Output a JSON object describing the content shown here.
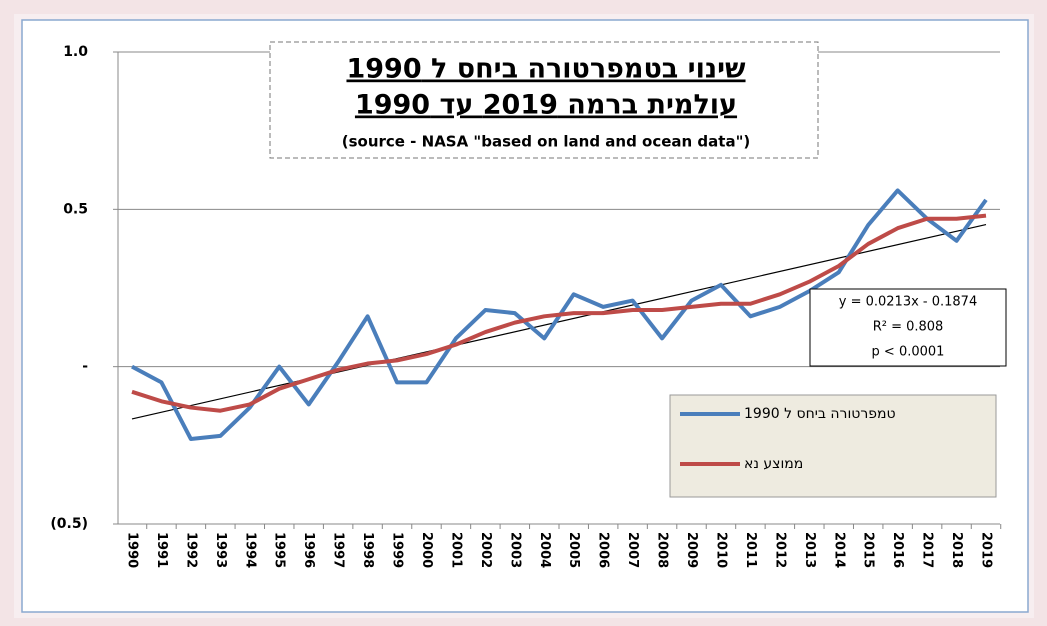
{
  "chart_data": {
    "type": "line",
    "title": [
      "שינוי בטמפרטורה ביחס ל 1990",
      "עולמית ברמה 2019 עד 1990"
    ],
    "subtitle": "(source - NASA \"based on land and ocean data\")",
    "categories": [
      "1990",
      "1991",
      "1992",
      "1993",
      "1994",
      "1995",
      "1996",
      "1997",
      "1998",
      "1999",
      "2000",
      "2001",
      "2002",
      "2003",
      "2004",
      "2005",
      "2006",
      "2007",
      "2008",
      "2009",
      "2010",
      "2011",
      "2012",
      "2013",
      "2014",
      "2015",
      "2016",
      "2017",
      "2018",
      "2019"
    ],
    "series": [
      {
        "name": "טמפרטורה ביחס ל 1990",
        "color": "#4a7ebb",
        "values": [
          0,
          -0.05,
          -0.23,
          -0.22,
          -0.13,
          0,
          -0.12,
          0.015,
          0.16,
          -0.05,
          -0.05,
          0.09,
          0.18,
          0.17,
          0.09,
          0.23,
          0.19,
          0.21,
          0.09,
          0.21,
          0.26,
          0.16,
          0.19,
          0.24,
          0.3,
          0.45,
          0.56,
          0.47,
          0.4,
          0.53
        ]
      },
      {
        "name": "ממוצע נא",
        "color": "#be4b48",
        "values": [
          -0.08,
          -0.11,
          -0.13,
          -0.14,
          -0.12,
          -0.07,
          -0.04,
          -0.01,
          0.01,
          0.02,
          0.04,
          0.07,
          0.11,
          0.14,
          0.16,
          0.17,
          0.17,
          0.18,
          0.18,
          0.19,
          0.2,
          0.2,
          0.23,
          0.27,
          0.32,
          0.39,
          0.44,
          0.47,
          0.47,
          0.48
        ]
      }
    ],
    "trendline": {
      "slope": 0.0213,
      "intercept": -0.1874,
      "color": "#000000",
      "label": [
        "y = 0.0213x - 0.1874",
        "R² = 0.808",
        "p < 0.0001"
      ]
    },
    "ylim": [
      -0.5,
      1.0
    ],
    "yticks": [
      {
        "value": 1.0,
        "label": "1.0"
      },
      {
        "value": 0.5,
        "label": "0.5"
      },
      {
        "value": 0,
        "label": "-"
      },
      {
        "value": -0.5,
        "label": "(0.5)"
      }
    ],
    "grid": true,
    "legend": "lower right"
  }
}
